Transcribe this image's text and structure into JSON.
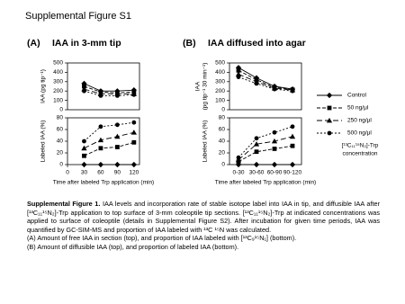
{
  "title": "Supplemental Figure S1",
  "panels": [
    {
      "letter": "(A)",
      "title": "IAA in 3-mm tip"
    },
    {
      "letter": "(B)",
      "title": "IAA diffused into agar"
    }
  ],
  "chart_data": [
    {
      "type": "line",
      "ylabel": "IAA (pg tip⁻¹)",
      "x": [
        30,
        60,
        90,
        120
      ],
      "xlim": [
        0,
        130
      ],
      "ylim": [
        0,
        500
      ],
      "yticks": [
        0,
        100,
        200,
        300,
        400,
        500
      ],
      "series": [
        {
          "name": "Control",
          "color": "#000000",
          "marker": "diamond",
          "dash": "none",
          "values": [
            280,
            200,
            200,
            210
          ]
        },
        {
          "name": "50 ng/μl",
          "color": "#000000",
          "marker": "square",
          "dash": "4,2",
          "values": [
            250,
            190,
            180,
            190
          ]
        },
        {
          "name": "250 ng/μl",
          "color": "#000000",
          "marker": "triangle",
          "dash": "6,3",
          "values": [
            220,
            170,
            170,
            170
          ]
        },
        {
          "name": "500 ng/μl",
          "color": "#000000",
          "marker": "circle",
          "dash": "2,2",
          "values": [
            200,
            150,
            150,
            160
          ]
        }
      ]
    },
    {
      "type": "line",
      "ylabel": "Labeled IAA (%)",
      "xlabel": "Time after labeled Trp application (min)",
      "x": [
        30,
        60,
        90,
        120
      ],
      "xlim": [
        0,
        130
      ],
      "xticks": [
        0,
        30,
        60,
        90,
        120
      ],
      "ylim": [
        0,
        80
      ],
      "yticks": [
        0,
        20,
        40,
        60,
        80
      ],
      "series": [
        {
          "color": "#000000",
          "marker": "diamond",
          "dash": "none",
          "values": [
            0,
            0,
            0,
            0
          ]
        },
        {
          "color": "#000000",
          "marker": "square",
          "dash": "4,2",
          "values": [
            15,
            28,
            30,
            38
          ]
        },
        {
          "color": "#000000",
          "marker": "triangle",
          "dash": "6,3",
          "values": [
            28,
            42,
            48,
            55
          ]
        },
        {
          "color": "#000000",
          "marker": "circle",
          "dash": "2,2",
          "values": [
            40,
            65,
            68,
            72
          ]
        }
      ]
    },
    {
      "type": "line",
      "ylabel": [
        "IAA",
        "(pg tip⁻¹ 30 min⁻¹)"
      ],
      "ylim": [
        0,
        500
      ],
      "yticks": [
        0,
        100,
        200,
        300,
        400,
        500
      ],
      "series": [
        {
          "color": "#000000",
          "marker": "diamond",
          "dash": "none",
          "values": [
            450,
            340,
            250,
            220
          ]
        },
        {
          "color": "#000000",
          "marker": "square",
          "dash": "4,2",
          "values": [
            420,
            320,
            240,
            215
          ]
        },
        {
          "color": "#000000",
          "marker": "triangle",
          "dash": "6,3",
          "values": [
            380,
            300,
            230,
            210
          ]
        },
        {
          "color": "#000000",
          "marker": "circle",
          "dash": "2,2",
          "values": [
            350,
            280,
            220,
            200
          ]
        }
      ]
    },
    {
      "type": "line",
      "ylabel": "Labeled IAA (%)",
      "xlabel": "Time after labeled Trp application (min)",
      "categories": [
        "0-30",
        "30-60",
        "60-90",
        "90-120"
      ],
      "ylim": [
        0,
        80
      ],
      "yticks": [
        0,
        20,
        40,
        60,
        80
      ],
      "series": [
        {
          "color": "#000000",
          "marker": "diamond",
          "dash": "none",
          "values": [
            0,
            0,
            0,
            0
          ]
        },
        {
          "color": "#000000",
          "marker": "square",
          "dash": "4,2",
          "values": [
            5,
            22,
            27,
            32
          ]
        },
        {
          "color": "#000000",
          "marker": "triangle",
          "dash": "6,3",
          "values": [
            8,
            35,
            40,
            48
          ]
        },
        {
          "color": "#000000",
          "marker": "circle",
          "dash": "2,2",
          "values": [
            12,
            45,
            55,
            65
          ]
        }
      ]
    }
  ],
  "legend_title": [
    "[¹³C₁₁¹⁵N₂]-Trp",
    "concentration"
  ],
  "caption": {
    "label": "Supplemental Figure 1.",
    "text": "IAA levels and incorporation rate of stable isotope label into IAA in tip, and diffusible IAA after [¹³C₁₁¹⁵N₂]-Trp application to top surface of 3-mm coleoptile tip sections. [¹³C₁₁¹⁵N₂]-Trp at indicated concentrations was applied to surface of coleoptile (details in Supplemental Figure S2). After incubation for given time periods, IAA was quantified by GC-SIM-MS and proportion of IAA labeled with ¹³C ¹⁵N was calculated.",
    "lines": [
      "(A) Amount of free IAA in section (top), and proportion of IAA labeled with [¹³C₉¹⁵N₁] (bottom).",
      "(B) Amount of diffusible IAA (top), and proportion of labeled IAA (bottom)."
    ]
  }
}
